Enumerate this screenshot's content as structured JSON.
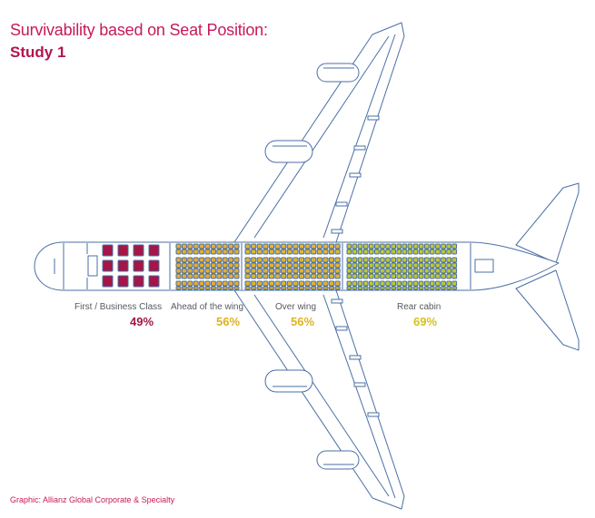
{
  "title": "Survivability based on Seat Position:",
  "subtitle": "Study 1",
  "credit": "Graphic: Allianz Global Corporate & Specialty",
  "colors": {
    "title": "#c8195a",
    "subtitle": "#b5134f",
    "credit": "#c8195a",
    "outline": "#4a6fa5",
    "first_business": "#a31646",
    "ahead_wing": "#e7ae2a",
    "over_wing": "#e1b52e",
    "rear_cabin": "#bfcb2a",
    "label_text": "#555a60"
  },
  "sections": [
    {
      "id": "first-business",
      "label": "First / Business Class",
      "percent": "49%",
      "percent_color": "#a31646"
    },
    {
      "id": "ahead-wing",
      "label": "Ahead of the wing",
      "percent": "56%",
      "percent_color": "#e0b21f"
    },
    {
      "id": "over-wing",
      "label": "Over wing",
      "percent": "56%",
      "percent_color": "#e0b21f"
    },
    {
      "id": "rear-cabin",
      "label": "Rear cabin",
      "percent": "69%",
      "percent_color": "#d6c21d"
    }
  ]
}
